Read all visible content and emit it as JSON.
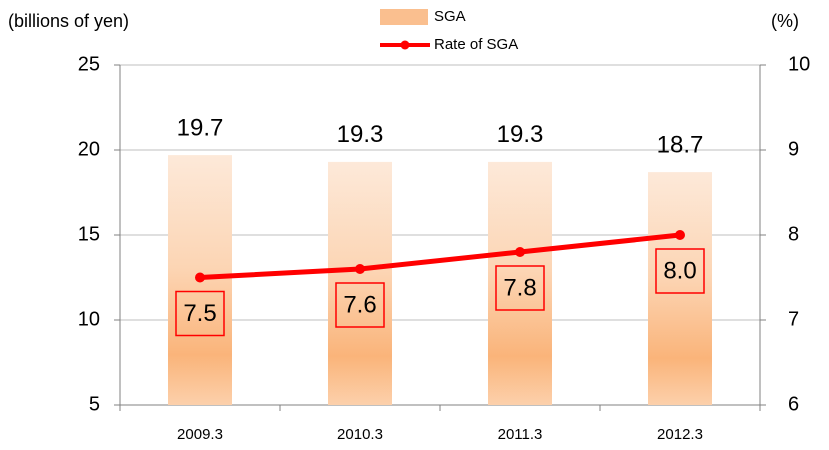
{
  "chart_data": {
    "type": "bar",
    "y_label": "(billions of yen)",
    "y2_label": "(%)",
    "categories": [
      "2009.3",
      "2010.3",
      "2011.3",
      "2012.3"
    ],
    "series": [
      {
        "name": "SGA",
        "color": "#fabf8f",
        "values": [
          19.7,
          19.3,
          19.3,
          18.7
        ]
      },
      {
        "name": "Rate of SGA",
        "color": "#ff0000",
        "type": "line",
        "axis": "y2",
        "values": [
          7.5,
          7.6,
          7.8,
          8
        ],
        "value_labels": [
          "7.5",
          "7.6",
          "7.8",
          "8.0"
        ]
      }
    ],
    "ylim": [
      5,
      25
    ],
    "yticks": [
      5,
      10,
      15,
      20,
      25
    ],
    "y2lim": [
      6,
      10
    ],
    "y2ticks": [
      6,
      7,
      8,
      9,
      10
    ],
    "grid": true,
    "legend": "top"
  }
}
